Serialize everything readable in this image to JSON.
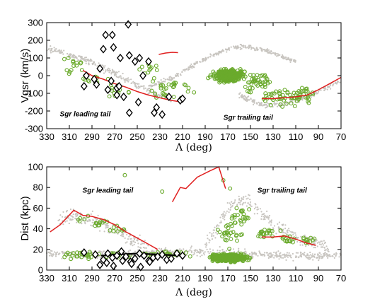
{
  "chart_data": [
    {
      "type": "scatter",
      "ylabel": "Vgsr (km/s)",
      "xlabel": "Λ (deg)",
      "xlim": [
        330,
        70
      ],
      "ylim": [
        -300,
        300
      ],
      "xticks": [
        330,
        310,
        290,
        270,
        250,
        230,
        210,
        190,
        170,
        150,
        130,
        110,
        90,
        70
      ],
      "yticks": [
        -300,
        -200,
        -100,
        0,
        100,
        200,
        300
      ],
      "annotations": [
        {
          "text": "Sgr leading tail",
          "x": 296,
          "y": -230
        },
        {
          "text": "Sgr trailing tail",
          "x": 152,
          "y": -250
        }
      ],
      "series": [
        {
          "role": "model-particles",
          "color": "#c8c5c0",
          "bands": [
            {
              "x": [
                330,
                320,
                310,
                300,
                290,
                280,
                270,
                260,
                250,
                240,
                230,
                220
              ],
              "y": [
                150,
                140,
                120,
                95,
                75,
                45,
                15,
                -20,
                -55,
                -90,
                -115,
                -130
              ],
              "spread": 30
            },
            {
              "x": [
                160,
                150,
                140,
                130,
                120,
                110,
                100,
                90,
                80,
                70
              ],
              "y": [
                -110,
                -140,
                -165,
                -170,
                -160,
                -140,
                -115,
                -90,
                -60,
                -25
              ],
              "spread": 25
            },
            {
              "x": [
                240,
                230,
                220,
                210,
                200,
                190,
                180,
                170,
                160,
                150,
                140,
                130,
                120,
                110
              ],
              "y": [
                -60,
                -40,
                -15,
                20,
                60,
                95,
                125,
                150,
                165,
                160,
                150,
                130,
                100,
                80
              ],
              "spread": 18
            }
          ]
        },
        {
          "role": "green-stars",
          "color": "#6aaa2c",
          "groups": [
            {
              "x": [
                305,
                290,
                265,
                240,
                230,
                215
              ],
              "y": [
                50,
                -20,
                -80,
                40,
                -90,
                -60
              ],
              "spread_x": 20,
              "spread_y": 70,
              "n": 80
            },
            {
              "x": [
                170
              ],
              "y": [
                0
              ],
              "spread_x": 18,
              "spread_y": 45,
              "n": 420
            },
            {
              "x": [
                145,
                125,
                105
              ],
              "y": [
                -40,
                -120,
                -110
              ],
              "spread_x": 20,
              "spread_y": 70,
              "n": 110
            }
          ]
        },
        {
          "role": "diamonds",
          "color": "#000000",
          "x": [
            278,
            272,
            258,
            280,
            271,
            265,
            257,
            252,
            248,
            295,
            283,
            288,
            297,
            286,
            276,
            268,
            273,
            266,
            245,
            268,
            262,
            249,
            233,
            222,
            212,
            257,
            235,
            228,
            240,
            210
          ],
          "y": [
            230,
            230,
            290,
            150,
            160,
            100,
            115,
            80,
            100,
            0,
            40,
            -20,
            -60,
            -50,
            -80,
            -70,
            -30,
            -60,
            0,
            -110,
            -120,
            -150,
            -180,
            -120,
            -140,
            -210,
            -210,
            -220,
            80,
            -130
          ]
        },
        {
          "role": "red-line",
          "color": "#e02020",
          "segments": [
            {
              "x": [
                298,
                290,
                280,
                270,
                260,
                250,
                240,
                230,
                220,
                210
              ],
              "y": [
                30,
                0,
                -20,
                -45,
                -65,
                -90,
                -110,
                -125,
                -140,
                -150
              ]
            },
            {
              "x": [
                231,
                225,
                219,
                214
              ],
              "y": [
                120,
                128,
                132,
                130
              ]
            },
            {
              "x": [
                140,
                130,
                120,
                110,
                100,
                90,
                80,
                70
              ],
              "y": [
                -130,
                -130,
                -125,
                -120,
                -110,
                -80,
                -45,
                -10
              ]
            }
          ]
        }
      ]
    },
    {
      "type": "scatter",
      "ylabel": "Dist (kpc)",
      "xlabel": "Λ (deg)",
      "xlim": [
        330,
        70
      ],
      "ylim": [
        0,
        100
      ],
      "xticks": [
        330,
        310,
        290,
        270,
        250,
        230,
        210,
        190,
        170,
        150,
        130,
        110,
        90,
        70
      ],
      "yticks": [
        0,
        20,
        40,
        60,
        80,
        100
      ],
      "annotations": [
        {
          "text": "Sgr leading tail",
          "x": 276,
          "y": 75
        },
        {
          "text": "Sgr trailing tail",
          "x": 122,
          "y": 75
        }
      ],
      "series": [
        {
          "role": "model-particles",
          "color": "#c8c5c0",
          "bands": [
            {
              "x": [
                320,
                310,
                300,
                290,
                280,
                270,
                260,
                250,
                240
              ],
              "y": [
                45,
                53,
                52,
                49,
                45,
                40,
                33,
                26,
                20
              ],
              "spread": 10
            },
            {
              "x": [
                190,
                180,
                170,
                160,
                150,
                140,
                130,
                120,
                110,
                100,
                90,
                80
              ],
              "y": [
                25,
                40,
                60,
                68,
                65,
                55,
                45,
                38,
                32,
                28,
                25,
                22
              ],
              "spread": 10
            },
            {
              "x": [
                330,
                300,
                270,
                240,
                210,
                180,
                150,
                120,
                90,
                70
              ],
              "y": [
                16,
                15,
                15,
                16,
                18,
                17,
                15,
                14,
                14,
                15
              ],
              "spread": 6
            }
          ]
        },
        {
          "role": "green-stars",
          "color": "#6aaa2c",
          "groups": [
            {
              "x": [
                300,
                270,
                240,
                215
              ],
              "y": [
                15,
                14,
                15,
                16
              ],
              "spread_x": 25,
              "spread_y": 5,
              "n": 70
            },
            {
              "x": [
                300,
                285,
                265
              ],
              "y": [
                50,
                45,
                40
              ],
              "spread_x": 12,
              "spread_y": 6,
              "n": 25
            },
            {
              "x": [
                170
              ],
              "y": [
                12
              ],
              "spread_x": 22,
              "spread_y": 5,
              "n": 450
            },
            {
              "x": [
                135,
                115,
                100
              ],
              "y": [
                35,
                30,
                28
              ],
              "spread_x": 15,
              "spread_y": 7,
              "n": 45
            },
            {
              "x": [
                170,
                160
              ],
              "y": [
                35,
                50
              ],
              "spread_x": 18,
              "spread_y": 15,
              "n": 50
            }
          ],
          "extra_points": [
            {
              "x": 261,
              "y": 92
            },
            {
              "x": 228,
              "y": 76
            },
            {
              "x": 174,
              "y": 87
            },
            {
              "x": 168,
              "y": 79
            }
          ]
        },
        {
          "role": "diamonds",
          "color": "#000000",
          "x": [
            297,
            287,
            280,
            276,
            272,
            268,
            264,
            260,
            256,
            252,
            248,
            244,
            240,
            236,
            232,
            228,
            224,
            220,
            215,
            210,
            283,
            277,
            271,
            263,
            255,
            247,
            239
          ],
          "y": [
            17,
            15,
            10,
            16,
            12,
            14,
            18,
            13,
            8,
            11,
            16,
            14,
            9,
            12,
            13,
            15,
            10,
            11,
            16,
            14,
            5,
            7,
            4,
            9,
            6,
            3,
            8
          ]
        },
        {
          "role": "black-line",
          "color": "#000000",
          "x": [
            282,
            270,
            250,
            230,
            210
          ],
          "y": [
            14,
            15,
            16,
            15,
            14
          ]
        },
        {
          "role": "red-line",
          "color": "#e02020",
          "segments": [
            {
              "x": [
                327,
                318,
                306,
                298,
                290,
                280,
                270,
                260,
                250,
                240,
                232
              ],
              "y": [
                37,
                44,
                58,
                53,
                52,
                49,
                44,
                37,
                31,
                25,
                20
              ]
            },
            {
              "x": [
                219,
                212,
                207,
                197,
                186,
                178,
                172
              ],
              "y": [
                66,
                80,
                79,
                90,
                96,
                100,
                79
              ]
            },
            {
              "x": [
                140,
                130,
                120,
                110,
                100,
                92
              ],
              "y": [
                32,
                32,
                33,
                30,
                26,
                24
              ]
            }
          ]
        }
      ]
    }
  ]
}
